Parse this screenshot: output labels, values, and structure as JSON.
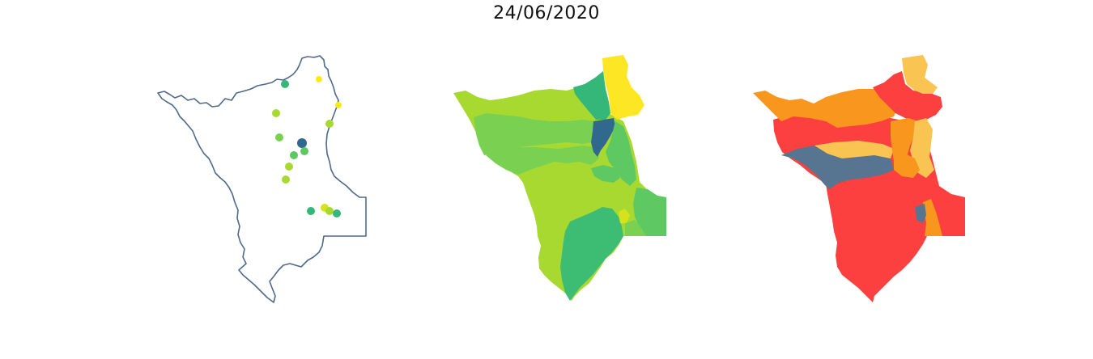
{
  "title": "24/06/2020",
  "colors": {
    "outline": "#4e6a8a",
    "yellow": "#fde725",
    "lime": "#a8d930",
    "light_green": "#7ad151",
    "green": "#5ec962",
    "teal_green": "#35b779",
    "dark_blue": "#31688e",
    "red": "#fc4040",
    "orange": "#f8961e",
    "light_orange": "#f9c452",
    "slate": "#577590"
  },
  "maps": [
    {
      "name": "station-points-map",
      "style": "outline with colored points"
    },
    {
      "name": "basins-green-map",
      "style": "choropleth viridis"
    },
    {
      "name": "basins-risk-map",
      "style": "choropleth red-orange"
    }
  ]
}
